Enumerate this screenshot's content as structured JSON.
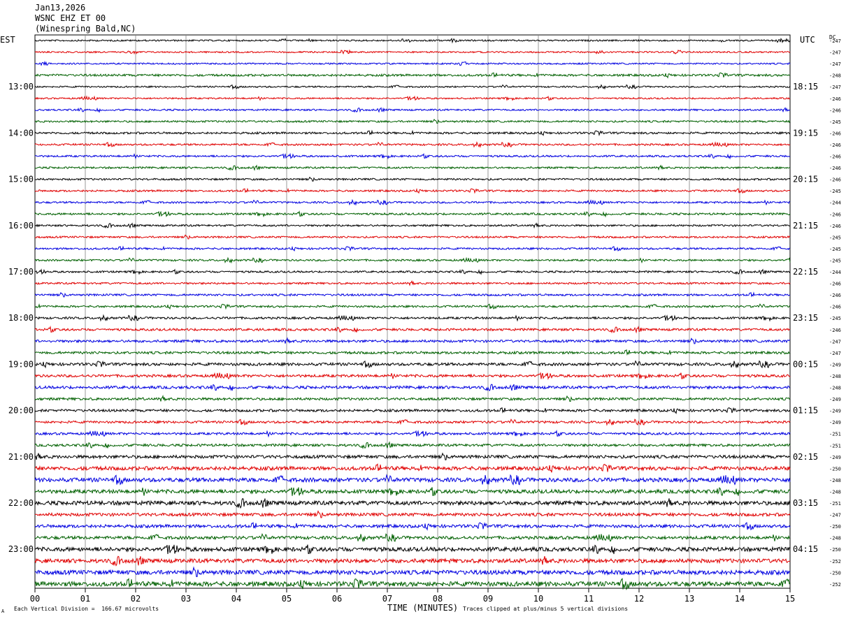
{
  "header": {
    "date": "Jan13,2026",
    "station": "WSNC EHZ ET 00",
    "location": "(Winespring Bald,NC)"
  },
  "axis_labels": {
    "left_timezone": "EST",
    "right_timezone": "UTC",
    "dc_label": "DC",
    "xlabel": "TIME (MINUTES)"
  },
  "footer": {
    "scale_note": "Each Vertical Division =  166.67 microvolts",
    "clip_note": "Traces clipped at plus/minus 5 vertical divisions",
    "corner_mark": "A"
  },
  "colors": {
    "trace_cycle": [
      "#000000",
      "#e00000",
      "#0000e0",
      "#006000"
    ],
    "grid": "#808080",
    "frame": "#000000"
  },
  "chart_data": {
    "type": "line",
    "title": "WSNC EHZ ET 00 (Winespring Bald,NC) Jan13,2026",
    "xlabel": "TIME (MINUTES)",
    "xlim": [
      0,
      15
    ],
    "x_ticks": [
      "00",
      "01",
      "02",
      "03",
      "04",
      "05",
      "06",
      "07",
      "08",
      "09",
      "10",
      "11",
      "12",
      "13",
      "14",
      "15"
    ],
    "rows_per_hour": 4,
    "row_count": 48,
    "est_hour_labels": [
      "13:00",
      "14:00",
      "15:00",
      "16:00",
      "17:00",
      "18:00",
      "19:00",
      "20:00",
      "21:00",
      "22:00",
      "23:00"
    ],
    "utc_hour_labels": [
      "18:15",
      "19:15",
      "20:15",
      "21:15",
      "22:15",
      "23:15",
      "00:15",
      "01:15",
      "02:15",
      "03:15",
      "04:15"
    ],
    "dc_offsets": [
      -247,
      -247,
      -247,
      -248,
      -247,
      -246,
      -246,
      -245,
      -246,
      -246,
      -246,
      -246,
      -246,
      -245,
      -244,
      -246,
      -246,
      -245,
      -245,
      -245,
      -244,
      -246,
      -246,
      -246,
      -245,
      -246,
      -247,
      -247,
      -249,
      -248,
      -248,
      -249,
      -249,
      -249,
      -251,
      -251,
      -249,
      -250,
      -248,
      -248,
      -251,
      -247,
      -250,
      -248,
      -250,
      -252,
      -250,
      -252
    ],
    "relative_noise_amplitude": [
      0.5,
      0.5,
      0.5,
      0.7,
      0.5,
      0.5,
      0.55,
      0.6,
      0.65,
      0.6,
      0.6,
      0.6,
      0.6,
      0.6,
      0.6,
      0.65,
      0.6,
      0.6,
      0.6,
      0.6,
      0.6,
      0.6,
      0.65,
      0.65,
      0.7,
      0.75,
      0.8,
      0.8,
      0.9,
      0.85,
      0.9,
      0.8,
      0.8,
      0.75,
      0.75,
      0.8,
      1.0,
      1.2,
      1.3,
      1.2,
      1.3,
      1.0,
      1.0,
      1.0,
      1.3,
      1.3,
      1.4,
      1.5
    ]
  }
}
